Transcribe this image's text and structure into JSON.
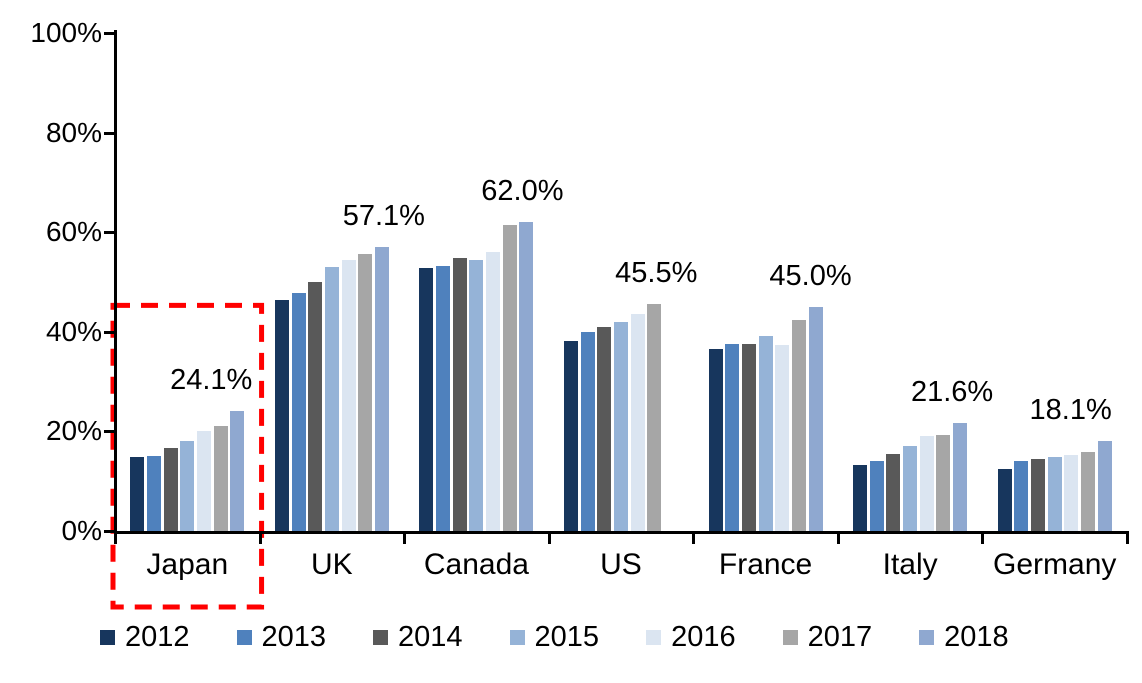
{
  "chart_data": {
    "type": "bar",
    "title": "",
    "xlabel": "",
    "ylabel": "",
    "categories": [
      "Japan",
      "UK",
      "Canada",
      "US",
      "France",
      "Italy",
      "Germany"
    ],
    "series": [
      {
        "name": "2012",
        "color": "#17365D",
        "values": [
          14.8,
          46.3,
          52.8,
          38.2,
          36.5,
          13.3,
          12.5
        ]
      },
      {
        "name": "2013",
        "color": "#4F81BD",
        "values": [
          15.0,
          47.8,
          53.2,
          40.0,
          37.5,
          14.0,
          14.0
        ]
      },
      {
        "name": "2014",
        "color": "#595959",
        "values": [
          16.6,
          49.9,
          54.8,
          41.0,
          37.5,
          15.5,
          14.5
        ]
      },
      {
        "name": "2015",
        "color": "#95B3D7",
        "values": [
          18.0,
          53.0,
          54.4,
          42.0,
          39.2,
          17.0,
          14.8
        ]
      },
      {
        "name": "2016",
        "color": "#DBE5F1",
        "values": [
          20.0,
          54.5,
          56.0,
          43.5,
          37.3,
          19.0,
          15.3
        ]
      },
      {
        "name": "2017",
        "color": "#A6A6A6",
        "values": [
          21.0,
          55.6,
          61.4,
          45.5,
          42.3,
          19.2,
          15.8
        ]
      },
      {
        "name": "2018",
        "color": "#8FA8D0",
        "values": [
          24.1,
          57.1,
          62.0,
          null,
          45.0,
          21.6,
          18.1
        ]
      }
    ],
    "data_labels": [
      {
        "category": "Japan",
        "text": "24.1%",
        "year": "2018",
        "dx": -26
      },
      {
        "category": "UK",
        "text": "57.1%",
        "year": "2018",
        "dx": 2
      },
      {
        "category": "Canada",
        "text": "62.0%",
        "year": "2018",
        "dx": -4
      },
      {
        "category": "US",
        "text": "45.5%",
        "year": "2017",
        "dx": 2
      },
      {
        "category": "France",
        "text": "45.0%",
        "year": "2018",
        "dx": -5
      },
      {
        "category": "Italy",
        "text": "21.6%",
        "year": "2018",
        "dx": -8
      },
      {
        "category": "Germany",
        "text": "18.1%",
        "year": "2018",
        "dx": -34
      }
    ],
    "ylim": [
      0,
      100
    ],
    "ytick_values": [
      0,
      20,
      40,
      60,
      80,
      100
    ],
    "ytick_labels": [
      "0%",
      "20%",
      "40%",
      "60%",
      "80%",
      "100%"
    ],
    "grid": false,
    "legend_position": "bottom",
    "legend_labels": [
      "2012",
      "2013",
      "2014",
      "2015",
      "2016",
      "2017",
      "2018"
    ],
    "annotation": {
      "type": "dashed-rectangle",
      "around_category": "Japan",
      "color": "#FF0000"
    }
  }
}
